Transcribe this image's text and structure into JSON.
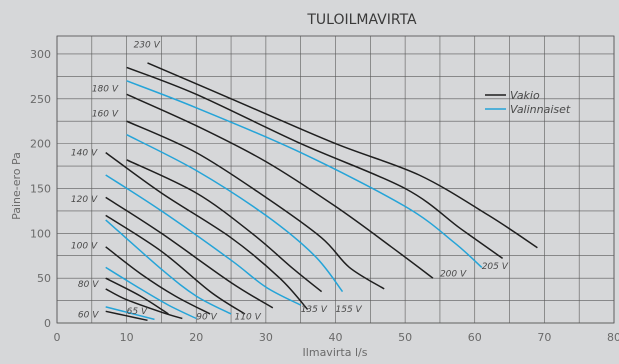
{
  "chart_data": {
    "type": "line",
    "title": "TULOILMAVIRTA",
    "xlabel": "Ilmavirta l/s",
    "ylabel": "Paine-ero Pa",
    "xlim": [
      0,
      80
    ],
    "ylim": [
      0,
      320
    ],
    "xticks": [
      0,
      10,
      20,
      30,
      40,
      50,
      60,
      70,
      80
    ],
    "yticks": [
      0,
      50,
      100,
      150,
      200,
      250,
      300
    ],
    "grid": true,
    "legend": {
      "placement": "top-right",
      "entries": [
        {
          "name": "Vakio",
          "color": "#1f1f1f"
        },
        {
          "name": "Valinnaiset",
          "color": "#25a4d8"
        }
      ]
    },
    "series": [
      {
        "name": "Vakio",
        "label": "230 V",
        "color": "#1f1f1f",
        "x": [
          13,
          25,
          40,
          52,
          62,
          69
        ],
        "y": [
          290,
          250,
          200,
          165,
          120,
          84
        ]
      },
      {
        "name": "Vakio",
        "label": "205 V",
        "color": "#1f1f1f",
        "x": [
          10,
          20,
          35,
          50,
          58,
          64
        ],
        "y": [
          285,
          255,
          200,
          150,
          105,
          72
        ]
      },
      {
        "name": "Valinnaiset",
        "label": "",
        "color": "#25a4d8",
        "x": [
          10,
          20,
          35,
          50,
          57,
          61
        ],
        "y": [
          270,
          240,
          190,
          130,
          90,
          62
        ]
      },
      {
        "name": "Vakio",
        "label": "200 V",
        "color": "#1f1f1f",
        "x": [
          10,
          20,
          30,
          40,
          48,
          54
        ],
        "y": [
          255,
          220,
          180,
          130,
          85,
          50
        ]
      },
      {
        "name": "Vakio",
        "label": "",
        "color": "#1f1f1f",
        "x": [
          10,
          20,
          30,
          38,
          42,
          47
        ],
        "y": [
          225,
          190,
          140,
          95,
          62,
          38
        ]
      },
      {
        "name": "Valinnaiset",
        "label": "155 V",
        "color": "#25a4d8",
        "x": [
          10,
          20,
          30,
          37,
          41
        ],
        "y": [
          210,
          170,
          120,
          75,
          35
        ]
      },
      {
        "name": "Vakio",
        "label": "",
        "color": "#1f1f1f",
        "x": [
          10,
          20,
          28,
          34,
          38
        ],
        "y": [
          182,
          145,
          100,
          60,
          35
        ]
      },
      {
        "name": "Vakio",
        "label": "135 V",
        "color": "#1f1f1f",
        "x": [
          7,
          15,
          25,
          32,
          36
        ],
        "y": [
          190,
          145,
          95,
          50,
          15
        ]
      },
      {
        "name": "Valinnaiset",
        "label": "",
        "color": "#25a4d8",
        "x": [
          7,
          15,
          25,
          30,
          35
        ],
        "y": [
          165,
          125,
          70,
          40,
          20
        ]
      },
      {
        "name": "Vakio",
        "label": "",
        "color": "#1f1f1f",
        "x": [
          7,
          15,
          25,
          31
        ],
        "y": [
          140,
          100,
          45,
          17
        ]
      },
      {
        "name": "Vakio",
        "label": "110 V",
        "color": "#1f1f1f",
        "x": [
          7,
          15,
          22,
          27
        ],
        "y": [
          120,
          80,
          35,
          10
        ]
      },
      {
        "name": "Valinnaiset",
        "label": "",
        "color": "#25a4d8",
        "x": [
          7,
          15,
          20,
          25
        ],
        "y": [
          115,
          60,
          30,
          10
        ]
      },
      {
        "name": "Vakio",
        "label": "90 V",
        "color": "#1f1f1f",
        "x": [
          7,
          12,
          17,
          22
        ],
        "y": [
          85,
          55,
          30,
          10
        ]
      },
      {
        "name": "Valinnaiset",
        "label": "",
        "color": "#25a4d8",
        "x": [
          7,
          12,
          16,
          20
        ],
        "y": [
          62,
          38,
          20,
          5
        ]
      },
      {
        "name": "Vakio",
        "label": "",
        "color": "#1f1f1f",
        "x": [
          7,
          12,
          16
        ],
        "y": [
          50,
          30,
          10
        ]
      },
      {
        "name": "Vakio",
        "label": "",
        "color": "#1f1f1f",
        "x": [
          7,
          10,
          15,
          18
        ],
        "y": [
          38,
          26,
          12,
          5
        ]
      },
      {
        "name": "Valinnaiset",
        "label": "",
        "color": "#25a4d8",
        "x": [
          7,
          10,
          14
        ],
        "y": [
          18,
          12,
          4
        ]
      },
      {
        "name": "Vakio",
        "label": "65 V",
        "color": "#1f1f1f",
        "x": [
          7,
          10,
          13
        ],
        "y": [
          13,
          8,
          3
        ]
      }
    ],
    "voltage_labels": [
      {
        "text": "230 V",
        "x": 11,
        "y": 307
      },
      {
        "text": "180 V",
        "x": 5,
        "y": 258
      },
      {
        "text": "160 V",
        "x": 5,
        "y": 230
      },
      {
        "text": "140 V",
        "x": 2,
        "y": 187
      },
      {
        "text": "120 V",
        "x": 2,
        "y": 135
      },
      {
        "text": "100 V",
        "x": 2,
        "y": 83
      },
      {
        "text": "80 V",
        "x": 3,
        "y": 40
      },
      {
        "text": "60 V",
        "x": 3,
        "y": 6
      },
      {
        "text": "65 V",
        "x": 10,
        "y": 10
      },
      {
        "text": "90 V",
        "x": 20,
        "y": 4
      },
      {
        "text": "110 V",
        "x": 25.5,
        "y": 4
      },
      {
        "text": "135 V",
        "x": 35,
        "y": 12
      },
      {
        "text": "155 V",
        "x": 40,
        "y": 12
      },
      {
        "text": "200 V",
        "x": 55,
        "y": 52
      },
      {
        "text": "205 V",
        "x": 61,
        "y": 60
      }
    ]
  }
}
